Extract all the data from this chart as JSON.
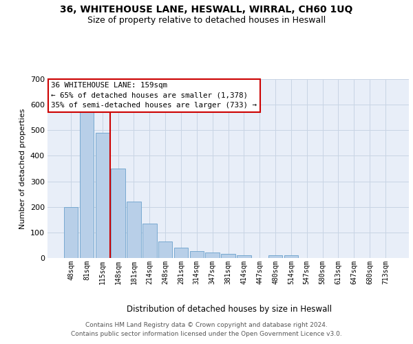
{
  "title1": "36, WHITEHOUSE LANE, HESWALL, WIRRAL, CH60 1UQ",
  "title2": "Size of property relative to detached houses in Heswall",
  "xlabel": "Distribution of detached houses by size in Heswall",
  "ylabel": "Number of detached properties",
  "categories": [
    "48sqm",
    "81sqm",
    "115sqm",
    "148sqm",
    "181sqm",
    "214sqm",
    "248sqm",
    "281sqm",
    "314sqm",
    "347sqm",
    "381sqm",
    "414sqm",
    "447sqm",
    "480sqm",
    "514sqm",
    "547sqm",
    "580sqm",
    "613sqm",
    "647sqm",
    "680sqm",
    "713sqm"
  ],
  "values": [
    200,
    580,
    490,
    350,
    220,
    135,
    65,
    40,
    28,
    22,
    16,
    12,
    0,
    12,
    10,
    0,
    0,
    0,
    0,
    0,
    0
  ],
  "bar_color": "#b8cfe8",
  "bar_edge_color": "#6aa0cc",
  "grid_color": "#c8d4e4",
  "background_color": "#e8eef8",
  "vline_x": 2.5,
  "vline_color": "#cc0000",
  "ylim_max": 700,
  "yticks": [
    0,
    100,
    200,
    300,
    400,
    500,
    600,
    700
  ],
  "annotation_line1": "36 WHITEHOUSE LANE: 159sqm",
  "annotation_line2": "← 65% of detached houses are smaller (1,378)",
  "annotation_line3": "35% of semi-detached houses are larger (733) →",
  "footer1": "Contains HM Land Registry data © Crown copyright and database right 2024.",
  "footer2": "Contains public sector information licensed under the Open Government Licence v3.0."
}
